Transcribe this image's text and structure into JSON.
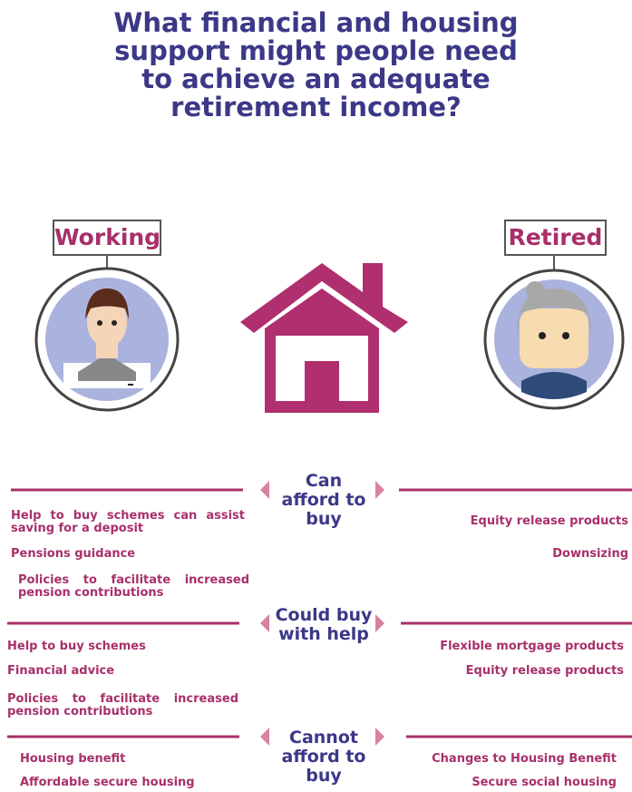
{
  "title": "What financial and housing support might people need to achieve an adequate retirement income?",
  "people": {
    "working": "Working",
    "retired": "Retired"
  },
  "sections": [
    {
      "label": "Can afford to buy",
      "left": [
        "Help to buy schemes can assist saving for a deposit",
        "Pensions guidance",
        "Policies to facilitate increased pension contributions"
      ],
      "right": [
        "Equity release products",
        "Downsizing"
      ]
    },
    {
      "label": "Could buy with help",
      "left": [
        "Help to buy schemes",
        "Financial advice",
        "Policies to facilitate increased pension contributions"
      ],
      "right": [
        "Flexible mortgage products",
        "Equity release products"
      ]
    },
    {
      "label": "Cannot afford to buy",
      "left": [
        "Housing benefit",
        "Affordable secure housing"
      ],
      "right": [
        "Changes to Housing Benefit",
        "Secure social housing"
      ]
    }
  ]
}
